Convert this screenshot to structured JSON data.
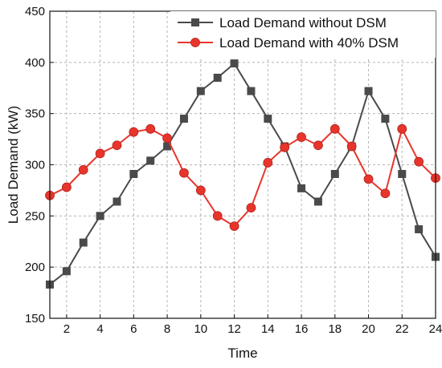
{
  "chart_data": {
    "type": "line",
    "xlabel": "Time",
    "ylabel": "Load Demand (kW)",
    "xlim": [
      1,
      24
    ],
    "ylim": [
      150,
      450
    ],
    "x_ticks": [
      2,
      4,
      6,
      8,
      10,
      12,
      14,
      16,
      18,
      20,
      22,
      24
    ],
    "y_ticks": [
      150,
      200,
      250,
      300,
      350,
      400,
      450
    ],
    "grid": true,
    "legend_position": "top-right",
    "x": [
      1,
      2,
      3,
      4,
      5,
      6,
      7,
      8,
      9,
      10,
      11,
      12,
      13,
      14,
      15,
      16,
      17,
      18,
      19,
      20,
      21,
      22,
      23,
      24
    ],
    "series": [
      {
        "name": "Load Demand without DSM",
        "color": "#4a4a4a",
        "marker": "square",
        "values": [
          183,
          196,
          224,
          250,
          264,
          291,
          304,
          318,
          345,
          372,
          385,
          399,
          372,
          345,
          318,
          277,
          264,
          291,
          318,
          372,
          345,
          291,
          237,
          210
        ]
      },
      {
        "name": "Load Demand with 40% DSM",
        "color": "#e8352c",
        "marker": "circle",
        "values": [
          270,
          278,
          295,
          311,
          319,
          332,
          335,
          326,
          292,
          275,
          250,
          240,
          258,
          302,
          317,
          327,
          319,
          335,
          318,
          286,
          272,
          335,
          303,
          287
        ]
      }
    ]
  }
}
